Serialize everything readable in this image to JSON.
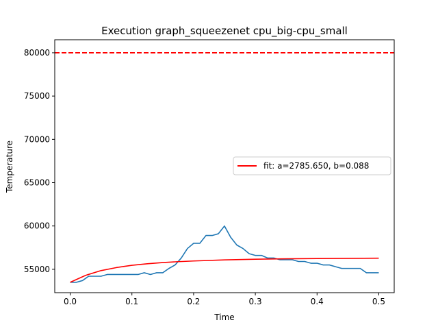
{
  "chart_data": {
    "type": "line",
    "title": "Execution graph_squeezenet cpu_big-cpu_small",
    "xlabel": "Time",
    "ylabel": "Temperature",
    "xlim": [
      -0.025,
      0.525
    ],
    "ylim": [
      52300,
      81500
    ],
    "xticks": [
      0.0,
      0.1,
      0.2,
      0.3,
      0.4,
      0.5
    ],
    "xtick_labels": [
      "0.0",
      "0.1",
      "0.2",
      "0.3",
      "0.4",
      "0.5"
    ],
    "yticks": [
      55000,
      60000,
      65000,
      70000,
      75000,
      80000
    ],
    "ytick_labels": [
      "55000",
      "60000",
      "65000",
      "70000",
      "75000",
      "80000"
    ],
    "grid": false,
    "legend_position": "center-right",
    "threshold": {
      "y": 80000,
      "color": "#ff0000",
      "style": "dashed"
    },
    "series": [
      {
        "color": "#1f77b4",
        "x": [
          0.0,
          0.01,
          0.02,
          0.03,
          0.04,
          0.05,
          0.06,
          0.07,
          0.08,
          0.09,
          0.1,
          0.11,
          0.12,
          0.13,
          0.14,
          0.15,
          0.16,
          0.17,
          0.18,
          0.19,
          0.2,
          0.21,
          0.22,
          0.23,
          0.24,
          0.25,
          0.26,
          0.27,
          0.28,
          0.29,
          0.3,
          0.31,
          0.32,
          0.33,
          0.34,
          0.35,
          0.36,
          0.37,
          0.38,
          0.39,
          0.4,
          0.41,
          0.42,
          0.43,
          0.44,
          0.45,
          0.46,
          0.47,
          0.48,
          0.49,
          0.5
        ],
        "y": [
          53500,
          53500,
          53700,
          54200,
          54200,
          54200,
          54400,
          54400,
          54400,
          54400,
          54400,
          54400,
          54600,
          54400,
          54600,
          54600,
          55100,
          55500,
          56300,
          57400,
          58000,
          58000,
          58900,
          58900,
          59100,
          60000,
          58700,
          57800,
          57400,
          56800,
          56600,
          56600,
          56300,
          56300,
          56100,
          56100,
          56100,
          55900,
          55900,
          55700,
          55700,
          55500,
          55500,
          55300,
          55100,
          55100,
          55100,
          55100,
          54600,
          54600,
          54600
        ]
      },
      {
        "name": "fit: a=2785.650, b=0.088",
        "color": "#ff0000",
        "x": [
          0.0,
          0.025,
          0.05,
          0.075,
          0.1,
          0.125,
          0.15,
          0.175,
          0.2,
          0.25,
          0.3,
          0.35,
          0.4,
          0.45,
          0.5
        ],
        "y": [
          53500,
          54300,
          54850,
          55200,
          55460,
          55640,
          55780,
          55880,
          55960,
          56080,
          56160,
          56210,
          56240,
          56260,
          56280
        ]
      }
    ]
  }
}
